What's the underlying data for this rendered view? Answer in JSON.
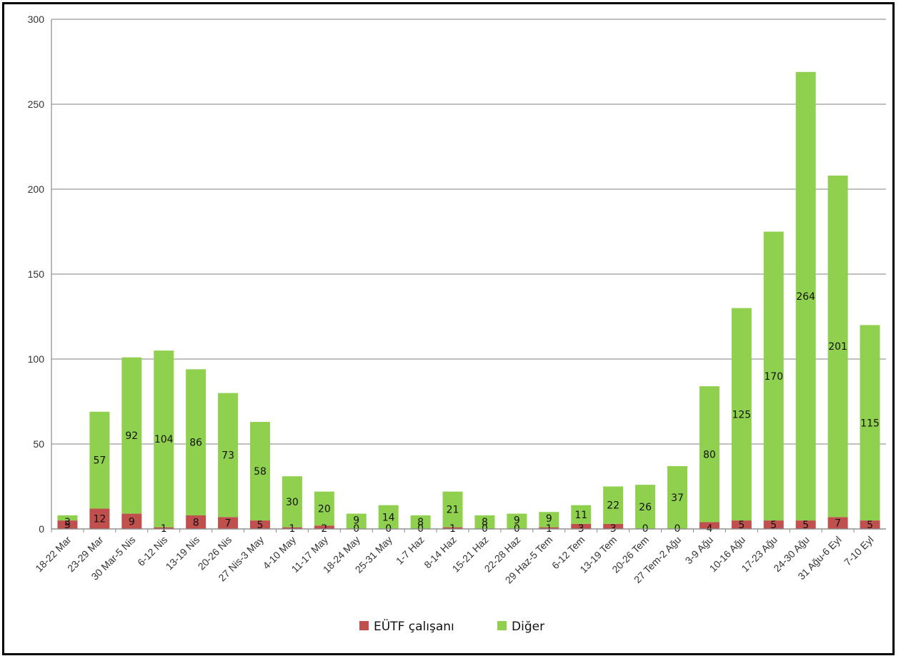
{
  "chart_data": {
    "type": "bar",
    "stacked": true,
    "title": "",
    "xlabel": "",
    "ylabel": "",
    "ylim": [
      0,
      300
    ],
    "yticks": [
      0,
      50,
      100,
      150,
      200,
      250,
      300
    ],
    "grid": true,
    "legend_position": "bottom",
    "categories": [
      "18-22 Mar",
      "23-29 Mar",
      "30 Mar-5 Nis",
      "6-12 Nis",
      "13-19 Nis",
      "20-26 Nis",
      "27 Nis-3 May",
      "4-10 May",
      "11-17 May",
      "18-24 May",
      "25-31 May",
      "1-7 Haz",
      "8-14 Haz",
      "15-21 Haz",
      "22-28 Haz",
      "29 Haz-5 Tem",
      "6-12 Tem",
      "13-19 Tem",
      "20-26 Tem",
      "27 Tem-2 Ağu",
      "3-9 Ağu",
      "10-16 Ağu",
      "17-23 Ağu",
      "24-30 Ağu",
      "31 Ağu-6 Eyl",
      "7-10 Eyl"
    ],
    "series": [
      {
        "name": "EÜTF çalışanı",
        "color": "#c0504d",
        "values": [
          5,
          12,
          9,
          1,
          8,
          7,
          5,
          1,
          2,
          0,
          0,
          0,
          1,
          0,
          0,
          1,
          3,
          3,
          0,
          0,
          4,
          5,
          5,
          5,
          7,
          5
        ]
      },
      {
        "name": "Diğer",
        "color": "#8fd14f",
        "values": [
          3,
          57,
          92,
          104,
          86,
          73,
          58,
          30,
          20,
          9,
          14,
          8,
          21,
          8,
          9,
          9,
          11,
          22,
          26,
          37,
          80,
          125,
          170,
          264,
          201,
          115
        ]
      }
    ]
  }
}
